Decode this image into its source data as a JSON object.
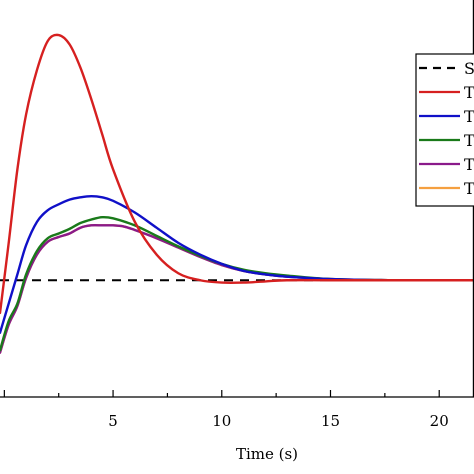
{
  "chart_data": {
    "type": "line",
    "xlabel": "Time (s)",
    "xlim": [
      -0.2,
      21.6
    ],
    "ylim": [
      -1.0,
      2.4
    ],
    "xticks": [
      5,
      10,
      15,
      20
    ],
    "xtick_labels": [
      "5",
      "10",
      "15",
      "20"
    ],
    "legend_placement": "top-right",
    "grid": false,
    "series": [
      {
        "name": "S",
        "color": "#000000",
        "dash": true,
        "x": [
          -0.2,
          21.6
        ],
        "y": [
          0,
          0
        ]
      },
      {
        "name": "T",
        "color": "#d62020",
        "dash": false,
        "x": [
          -0.2,
          0.2,
          0.6,
          1.0,
          1.5,
          2.0,
          2.5,
          3.0,
          3.5,
          4.0,
          4.5,
          5.0,
          6.0,
          7.0,
          8.0,
          9.0,
          10.0,
          11.0,
          12.0,
          13.0,
          15.0,
          18.0,
          21.6
        ],
        "y": [
          -0.28,
          0.32,
          0.95,
          1.42,
          1.8,
          2.05,
          2.1,
          2.02,
          1.82,
          1.55,
          1.25,
          0.95,
          0.5,
          0.22,
          0.06,
          0.0,
          -0.02,
          -0.02,
          -0.01,
          0.0,
          0.0,
          0.0,
          0.0
        ]
      },
      {
        "name": "T",
        "color": "#1010c8",
        "dash": false,
        "x": [
          -0.2,
          0.2,
          0.6,
          1.0,
          1.5,
          2.0,
          2.5,
          3.0,
          3.5,
          4.0,
          4.5,
          5.0,
          6.0,
          7.0,
          8.0,
          9.0,
          10.0,
          11.0,
          12.0,
          13.0,
          15.0,
          18.0,
          21.6
        ],
        "y": [
          -0.45,
          -0.2,
          0.05,
          0.3,
          0.5,
          0.6,
          0.65,
          0.69,
          0.71,
          0.72,
          0.71,
          0.68,
          0.58,
          0.45,
          0.32,
          0.22,
          0.14,
          0.08,
          0.05,
          0.03,
          0.01,
          0.0,
          0.0
        ]
      },
      {
        "name": "T",
        "color": "#1a7a1a",
        "dash": false,
        "x": [
          -0.2,
          0.2,
          0.6,
          1.0,
          1.5,
          2.0,
          2.5,
          3.0,
          3.5,
          4.0,
          4.5,
          5.0,
          6.0,
          7.0,
          8.0,
          9.0,
          10.0,
          11.0,
          12.0,
          13.0,
          15.0,
          18.0,
          21.6
        ],
        "y": [
          -0.6,
          -0.35,
          -0.2,
          0.05,
          0.25,
          0.36,
          0.4,
          0.44,
          0.49,
          0.52,
          0.54,
          0.53,
          0.47,
          0.38,
          0.29,
          0.21,
          0.14,
          0.09,
          0.06,
          0.04,
          0.01,
          0.0,
          0.0
        ]
      },
      {
        "name": "T",
        "color": "#8a1a8a",
        "dash": false,
        "x": [
          -0.2,
          0.2,
          0.6,
          1.0,
          1.5,
          2.0,
          2.5,
          3.0,
          3.5,
          4.0,
          4.5,
          5.0,
          5.5,
          6.0,
          7.0,
          8.0,
          9.0,
          10.0,
          11.0,
          12.0,
          13.0,
          15.0,
          18.0,
          21.6
        ],
        "y": [
          -0.62,
          -0.38,
          -0.22,
          0.02,
          0.22,
          0.33,
          0.37,
          0.4,
          0.45,
          0.47,
          0.47,
          0.47,
          0.46,
          0.43,
          0.36,
          0.28,
          0.2,
          0.13,
          0.08,
          0.05,
          0.03,
          0.01,
          0.0,
          0.0
        ]
      },
      {
        "name": "T",
        "color": "#f5a040",
        "dash": false,
        "x": [
          -0.2,
          0.2,
          0.6,
          1.0,
          1.5,
          2.0,
          2.5,
          3.0,
          3.5,
          4.0,
          4.5,
          5.0,
          5.5,
          6.0,
          7.0,
          8.0,
          9.0,
          10.0,
          11.0,
          12.0,
          13.0,
          15.0,
          18.0,
          21.6
        ],
        "y": [
          -0.62,
          -0.38,
          -0.22,
          0.02,
          0.22,
          0.33,
          0.37,
          0.4,
          0.45,
          0.47,
          0.47,
          0.47,
          0.46,
          0.43,
          0.36,
          0.28,
          0.2,
          0.13,
          0.08,
          0.05,
          0.03,
          0.01,
          0.0,
          0.0
        ]
      }
    ]
  }
}
